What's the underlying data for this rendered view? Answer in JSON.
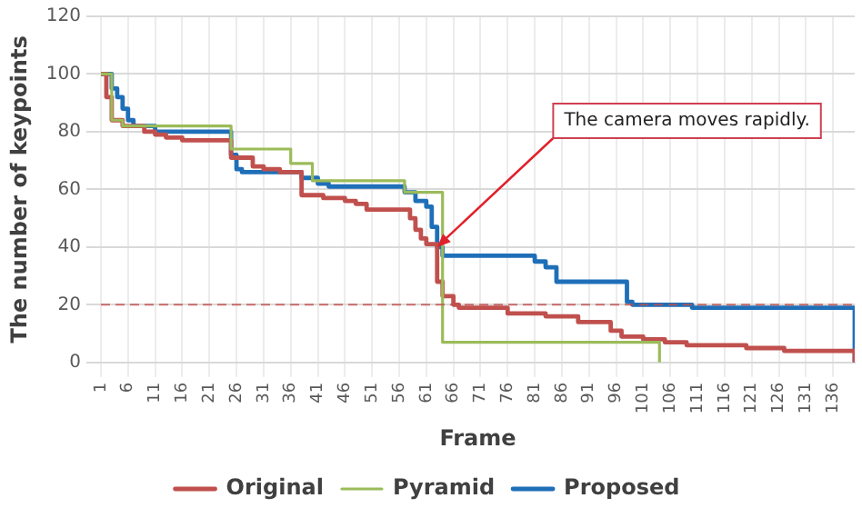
{
  "chart_data": {
    "type": "step",
    "xlabel": "Frame",
    "ylabel": "The number of keypoints",
    "xlim": [
      1,
      140
    ],
    "xticks": [
      1,
      6,
      11,
      16,
      21,
      26,
      31,
      36,
      41,
      46,
      51,
      56,
      61,
      66,
      71,
      76,
      81,
      86,
      91,
      96,
      101,
      106,
      111,
      116,
      121,
      126,
      131,
      136
    ],
    "ylim": [
      0,
      120
    ],
    "yticks": [
      0,
      20,
      40,
      60,
      80,
      100,
      120
    ],
    "grid": true,
    "legend": "bottom",
    "line_style": "solid",
    "marker": "none",
    "series": [
      {
        "name": "Original",
        "color": "#c0504d",
        "x": [
          1,
          2,
          3,
          5,
          9,
          11,
          13,
          16,
          25,
          29,
          31,
          34,
          38,
          42,
          46,
          48,
          50,
          58,
          59,
          60,
          61,
          63,
          64,
          66,
          67,
          76,
          83,
          89,
          95,
          97,
          101,
          105,
          109,
          120,
          127,
          139,
          140
        ],
        "values": [
          100,
          92,
          84,
          82,
          80,
          79,
          78,
          77,
          71,
          68,
          67,
          66,
          58,
          57,
          56,
          55,
          53,
          50,
          46,
          43,
          41,
          28,
          23,
          20,
          19,
          17,
          16,
          14,
          11,
          9,
          8,
          7,
          6,
          5,
          4,
          4,
          0
        ]
      },
      {
        "name": "Pyramid",
        "color": "#9bbb59",
        "x": [
          1,
          3,
          5,
          25,
          36,
          40,
          57,
          63,
          64,
          103,
          104
        ],
        "values": [
          100,
          84,
          82,
          74,
          69,
          63,
          59,
          59,
          7,
          7,
          0
        ]
      },
      {
        "name": "Proposed",
        "color": "#1f6fb8",
        "x": [
          1,
          3,
          4,
          5,
          6,
          7,
          11,
          25,
          26,
          27,
          38,
          41,
          43,
          57,
          59,
          61,
          62,
          63,
          64,
          81,
          83,
          85,
          98,
          99,
          103,
          110,
          139,
          140
        ],
        "values": [
          100,
          95,
          92,
          88,
          84,
          82,
          80,
          72,
          67,
          66,
          64,
          62,
          61,
          59,
          56,
          54,
          47,
          40,
          37,
          35,
          33,
          28,
          21,
          20,
          20,
          19,
          19,
          0
        ]
      }
    ],
    "ref_lines": [
      {
        "axis": "y",
        "value": 20,
        "color": "#c0504d",
        "line_style": "dashed"
      }
    ],
    "annotations": [
      {
        "text": "The camera moves rapidly.",
        "x": 63,
        "y": 40
      }
    ]
  }
}
